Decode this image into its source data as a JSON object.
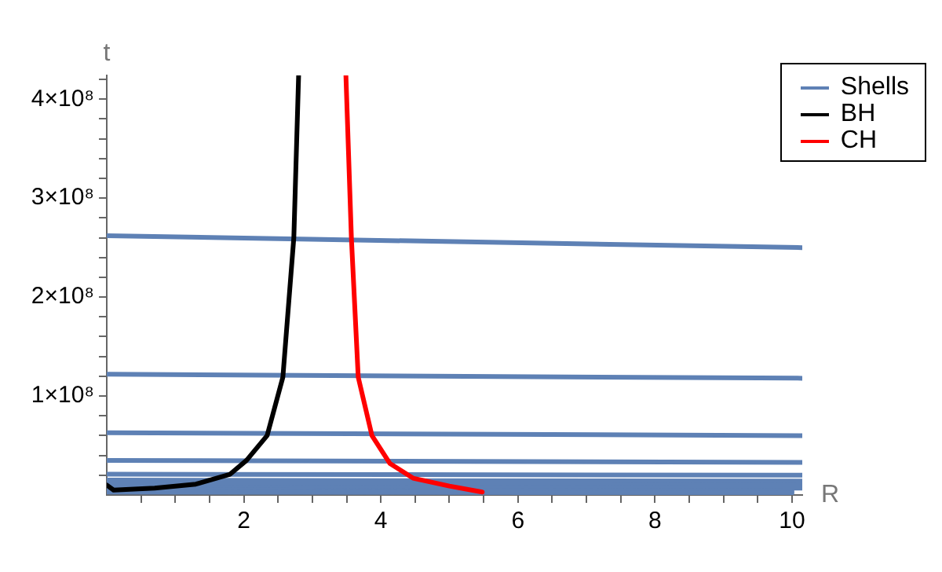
{
  "chart_data": {
    "type": "line",
    "xlabel": "R",
    "ylabel": "t",
    "xlim": [
      0,
      10.15
    ],
    "ylim": [
      0,
      424000000
    ],
    "xticks": [
      {
        "value": 0.5,
        "label": null
      },
      {
        "value": 1,
        "label": null
      },
      {
        "value": 1.5,
        "label": null
      },
      2,
      {
        "value": 2.5,
        "label": null
      },
      {
        "value": 3,
        "label": null
      },
      {
        "value": 3.5,
        "label": null
      },
      4,
      {
        "value": 4.5,
        "label": null
      },
      {
        "value": 5,
        "label": null
      },
      {
        "value": 5.5,
        "label": null
      },
      6,
      {
        "value": 6.5,
        "label": null
      },
      {
        "value": 7,
        "label": null
      },
      {
        "value": 7.5,
        "label": null
      },
      8,
      {
        "value": 8.5,
        "label": null
      },
      {
        "value": 9,
        "label": null
      },
      {
        "value": 9.5,
        "label": null
      },
      10
    ],
    "yticks": [
      {
        "value": 20000000,
        "label": null
      },
      {
        "value": 40000000,
        "label": null
      },
      {
        "value": 60000000,
        "label": null
      },
      {
        "value": 80000000,
        "label": null
      },
      {
        "value": 100000000,
        "label": "1×10⁸"
      },
      {
        "value": 120000000,
        "label": null
      },
      {
        "value": 140000000,
        "label": null
      },
      {
        "value": 160000000,
        "label": null
      },
      {
        "value": 180000000,
        "label": null
      },
      {
        "value": 200000000,
        "label": "2×10⁸"
      },
      {
        "value": 220000000,
        "label": null
      },
      {
        "value": 240000000,
        "label": null
      },
      {
        "value": 260000000,
        "label": null
      },
      {
        "value": 280000000,
        "label": null
      },
      {
        "value": 300000000,
        "label": "3×10⁸"
      },
      {
        "value": 320000000,
        "label": null
      },
      {
        "value": 340000000,
        "label": null
      },
      {
        "value": 360000000,
        "label": null
      },
      {
        "value": 380000000,
        "label": null
      },
      {
        "value": 400000000,
        "label": "4×10⁸"
      },
      {
        "value": 420000000,
        "label": null
      }
    ],
    "grid": false,
    "legend": "top right",
    "marker": "none",
    "line_style": "solid",
    "series": [
      {
        "name": "Shells",
        "color": "#5e81b5",
        "x": [
          0,
          10.15
        ],
        "values": [
          262000000,
          250000000
        ]
      },
      {
        "color": "#5e81b5",
        "x": [
          0,
          10.15
        ],
        "values": [
          122000000,
          118000000
        ]
      },
      {
        "color": "#5e81b5",
        "x": [
          0,
          10.15
        ],
        "values": [
          63000000,
          60000000
        ]
      },
      {
        "color": "#5e81b5",
        "x": [
          0,
          10.15
        ],
        "values": [
          35000000,
          33000000
        ]
      },
      {
        "color": "#5e81b5",
        "x": [
          0,
          10.15
        ],
        "values": [
          21000000,
          20000000
        ]
      },
      {
        "color": "#5e81b5",
        "x": [
          0,
          10.15
        ],
        "values": [
          15000000,
          14000000
        ]
      },
      {
        "color": "#5e81b5",
        "x": [
          0,
          10.15
        ],
        "values": [
          11000000,
          10000000
        ]
      },
      {
        "color": "#5e81b5",
        "x": [
          0,
          10.15
        ],
        "values": [
          8000000,
          7000000
        ]
      },
      {
        "color": "#5e81b5",
        "x": [
          0,
          10
        ],
        "values": [
          5000000,
          4000000
        ]
      },
      {
        "color": "#5e81b5",
        "x": [
          0,
          10
        ],
        "values": [
          3000000,
          2000000
        ]
      },
      {
        "name": "BH",
        "color": "#000000",
        "x": [
          0,
          0.1,
          0.7,
          1.3,
          1.8,
          2.04,
          2.34,
          2.57,
          2.73,
          2.8
        ],
        "values": [
          10000000,
          5000000,
          7000000,
          11000000,
          21000000,
          35000000,
          60000000,
          119000000,
          260000000,
          424000000
        ]
      },
      {
        "name": "CH",
        "color": "#ff0000",
        "x": [
          3.49,
          3.57,
          3.67,
          3.87,
          4.13,
          4.47,
          5.0,
          5.48
        ],
        "values": [
          424000000,
          260000000,
          119000000,
          60000000,
          32000000,
          17000000,
          9000000,
          3000000
        ]
      }
    ]
  }
}
